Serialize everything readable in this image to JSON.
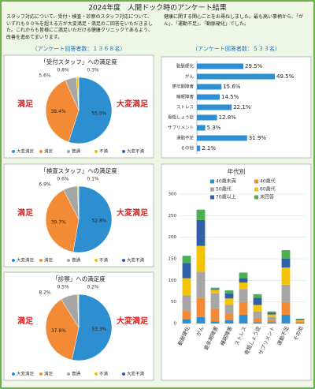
{
  "header": {
    "title": "2024年度　人間ドック時のアンケート結果",
    "intro_left": "スタッフ対応について、受付・検査・診察のスタッフ対応について、いずれも９０％を超える方が大変満足・満足のご回答をいただきました。これからも皆様にご満足いただける健康クリニックであるよう、改善を進めてまいります。",
    "intro_right": "健康に関する関心ごとをお尋ねしました。最も高い事柄から、「がん」、「運動不足」、「動脈硬化」でした。",
    "count_left": "（アンケート回答者数：１３６８名）",
    "count_right": "（アンケート回答者数：５３３名）"
  },
  "chart_data": [
    {
      "type": "pie",
      "title": "「受付スタッフ」への満足度",
      "categories": [
        "大変満足",
        "満足",
        "普通",
        "不満",
        "大変不満"
      ],
      "values": [
        55.0,
        38.4,
        5.6,
        0.8,
        0.3
      ],
      "value_labels": [
        "55.0%",
        "38.4%",
        "5.6%",
        "0.8%",
        "0.3%"
      ],
      "colors": [
        "#2e8fd0",
        "#f28a36",
        "#a6a6a6",
        "#f5c400",
        "#2f5fa8"
      ],
      "annotations": [
        "満足",
        "大変満足"
      ]
    },
    {
      "type": "pie",
      "title": "「検査スタッフ」への満足度",
      "categories": [
        "大変満足",
        "満足",
        "普通",
        "不満",
        "大変不満"
      ],
      "values": [
        52.8,
        39.7,
        6.9,
        0.6,
        0.1
      ],
      "value_labels": [
        "52.8%",
        "39.7%",
        "6.9%",
        "0.6%",
        "0.1%"
      ],
      "colors": [
        "#2e8fd0",
        "#f28a36",
        "#a6a6a6",
        "#f5c400",
        "#2f5fa8"
      ],
      "annotations": [
        "満足",
        "大変満足"
      ]
    },
    {
      "type": "pie",
      "title": "「診察」への満足度",
      "categories": [
        "大変満足",
        "満足",
        "普通",
        "不満",
        "大変不満"
      ],
      "values": [
        53.3,
        37.8,
        8.2,
        0.5,
        0.2
      ],
      "value_labels": [
        "53.3%",
        "37.8%",
        "8.2%",
        "0.5%",
        "0.2%"
      ],
      "colors": [
        "#2e8fd0",
        "#f28a36",
        "#a6a6a6",
        "#f5c400",
        "#2f5fa8"
      ],
      "annotations": [
        "満足",
        "大変満足"
      ]
    },
    {
      "type": "hbar",
      "categories": [
        "動脈硬化",
        "がん",
        "更年期障害",
        "睡眠障害",
        "ストレス",
        "骨粗しょう症",
        "サプリメント",
        "運動不足",
        "その他"
      ],
      "values": [
        29.5,
        49.5,
        15.6,
        14.5,
        22.1,
        12.8,
        5.3,
        31.9,
        2.1
      ],
      "value_labels": [
        "29.5%",
        "49.5%",
        "15.6%",
        "14.5%",
        "22.1%",
        "12.8%",
        "5.3%",
        "31.9%",
        "2.1%"
      ],
      "color": "#2e8fd0",
      "xlim": [
        0,
        60
      ]
    },
    {
      "type": "stacked_bar",
      "title": "年代別",
      "categories": [
        "動脈硬化",
        "がん",
        "更年期障害",
        "睡眠障害",
        "ストレス",
        "骨粗しょう症",
        "サプリメント",
        "運動不足",
        "その他"
      ],
      "series": [
        {
          "name": "40歳未満",
          "color": "#2e8fd0",
          "values": [
            10,
            15,
            5,
            8,
            20,
            3,
            3,
            20,
            2
          ]
        },
        {
          "name": "40歳代",
          "color": "#f28a36",
          "values": [
            20,
            45,
            30,
            15,
            30,
            8,
            5,
            30,
            2
          ]
        },
        {
          "name": "50歳代",
          "color": "#a6a6a6",
          "values": [
            35,
            60,
            35,
            20,
            30,
            17,
            7,
            40,
            2
          ]
        },
        {
          "name": "60歳代",
          "color": "#f5c400",
          "values": [
            40,
            60,
            8,
            15,
            15,
            15,
            6,
            40,
            2
          ]
        },
        {
          "name": "70歳以上",
          "color": "#2f5fa8",
          "values": [
            35,
            60,
            2,
            12,
            10,
            17,
            4,
            20,
            2
          ]
        },
        {
          "name": "未回答",
          "color": "#4caf50",
          "values": [
            17,
            24,
            3,
            7,
            13,
            8,
            3,
            20,
            1
          ]
        }
      ],
      "ylim": [
        0,
        300
      ],
      "yticks": [
        0,
        50,
        100,
        150,
        200,
        250,
        300
      ],
      "grid": true
    }
  ]
}
